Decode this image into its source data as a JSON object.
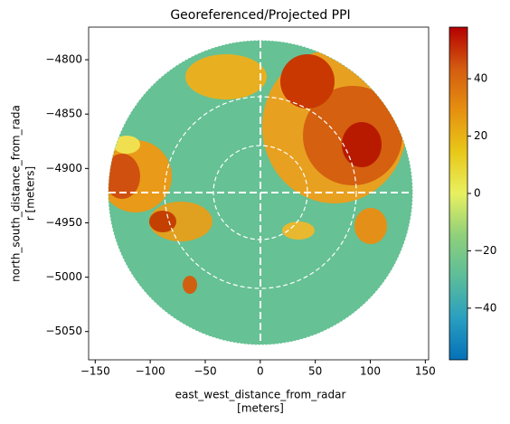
{
  "chart_data": {
    "type": "image",
    "title": "Georeferenced/Projected PPI",
    "xlabel": [
      "east_west_distance_from_radar",
      "[meters]"
    ],
    "ylabel": [
      "north_south_distance_from_rada",
      "r [meters]"
    ],
    "xlim": [
      -156,
      153
    ],
    "ylim": [
      -5076,
      -4770
    ],
    "xticks": [
      {
        "value": -150,
        "label": "−150"
      },
      {
        "value": -100,
        "label": "−100"
      },
      {
        "value": -50,
        "label": "−50"
      },
      0,
      50,
      100,
      150
    ],
    "yticks": [
      {
        "value": -4800,
        "label": "−4800"
      },
      {
        "value": -4850,
        "label": "−4850"
      },
      {
        "value": -4900,
        "label": "−4900"
      },
      {
        "value": -4950,
        "label": "−4950"
      },
      {
        "value": -5000,
        "label": "−5000"
      },
      {
        "value": -5050,
        "label": "−5050"
      }
    ],
    "clim": [
      -58,
      58
    ],
    "cticks": [
      {
        "value": -40,
        "label": "−40"
      },
      {
        "value": -20,
        "label": "−20"
      },
      0,
      20,
      40
    ],
    "colormap": [
      "#0571b8",
      "#2a9fc0",
      "#5cbd9a",
      "#8fd07a",
      "#e8f060",
      "#e8c818",
      "#e69010",
      "#d45c10",
      "#b40000"
    ]
  }
}
